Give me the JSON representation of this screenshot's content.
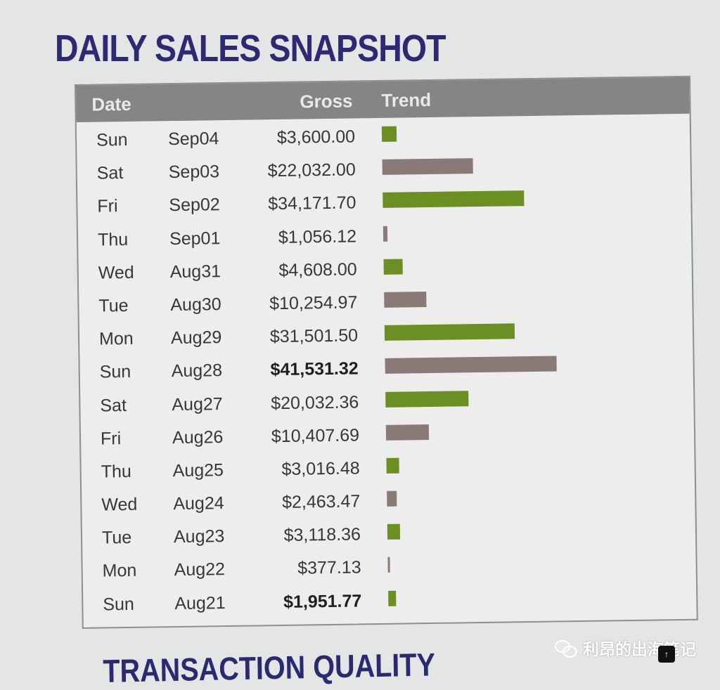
{
  "page": {
    "title": "DAILY SALES SNAPSHOT",
    "footer_title": "TRANSACTION QUALITY"
  },
  "table": {
    "columns": {
      "date": "Date",
      "gross": "Gross",
      "trend": "Trend"
    },
    "colors": {
      "green": "#6b8f22",
      "brown": "#897a78",
      "header": "#858585"
    },
    "rows": [
      {
        "day": "Sun",
        "date": "Sep04",
        "gross": "$3,600.00",
        "value": 3600.0,
        "color": "green",
        "bold": false
      },
      {
        "day": "Sat",
        "date": "Sep03",
        "gross": "$22,032.00",
        "value": 22032.0,
        "color": "brown",
        "bold": false
      },
      {
        "day": "Fri",
        "date": "Sep02",
        "gross": "$34,171.70",
        "value": 34171.7,
        "color": "green",
        "bold": false
      },
      {
        "day": "Thu",
        "date": "Sep01",
        "gross": "$1,056.12",
        "value": 1056.12,
        "color": "brown",
        "bold": false
      },
      {
        "day": "Wed",
        "date": "Aug31",
        "gross": "$4,608.00",
        "value": 4608.0,
        "color": "green",
        "bold": false
      },
      {
        "day": "Tue",
        "date": "Aug30",
        "gross": "$10,254.97",
        "value": 10254.97,
        "color": "brown",
        "bold": false
      },
      {
        "day": "Mon",
        "date": "Aug29",
        "gross": "$31,501.50",
        "value": 31501.5,
        "color": "green",
        "bold": false
      },
      {
        "day": "Sun",
        "date": "Aug28",
        "gross": "$41,531.32",
        "value": 41531.32,
        "color": "brown",
        "bold": true
      },
      {
        "day": "Sat",
        "date": "Aug27",
        "gross": "$20,032.36",
        "value": 20032.36,
        "color": "green",
        "bold": false
      },
      {
        "day": "Fri",
        "date": "Aug26",
        "gross": "$10,407.69",
        "value": 10407.69,
        "color": "brown",
        "bold": false
      },
      {
        "day": "Thu",
        "date": "Aug25",
        "gross": "$3,016.48",
        "value": 3016.48,
        "color": "green",
        "bold": false
      },
      {
        "day": "Wed",
        "date": "Aug24",
        "gross": "$2,463.47",
        "value": 2463.47,
        "color": "brown",
        "bold": false
      },
      {
        "day": "Tue",
        "date": "Aug23",
        "gross": "$3,118.36",
        "value": 3118.36,
        "color": "green",
        "bold": false
      },
      {
        "day": "Mon",
        "date": "Aug22",
        "gross": "$377.13",
        "value": 377.13,
        "color": "brown",
        "bold": false
      },
      {
        "day": "Sun",
        "date": "Aug21",
        "gross": "$1,951.77",
        "value": 1951.77,
        "color": "green",
        "bold": true
      }
    ]
  },
  "watermark": {
    "icon": "wechat-icon",
    "text": "利昂的出海笔记"
  }
}
